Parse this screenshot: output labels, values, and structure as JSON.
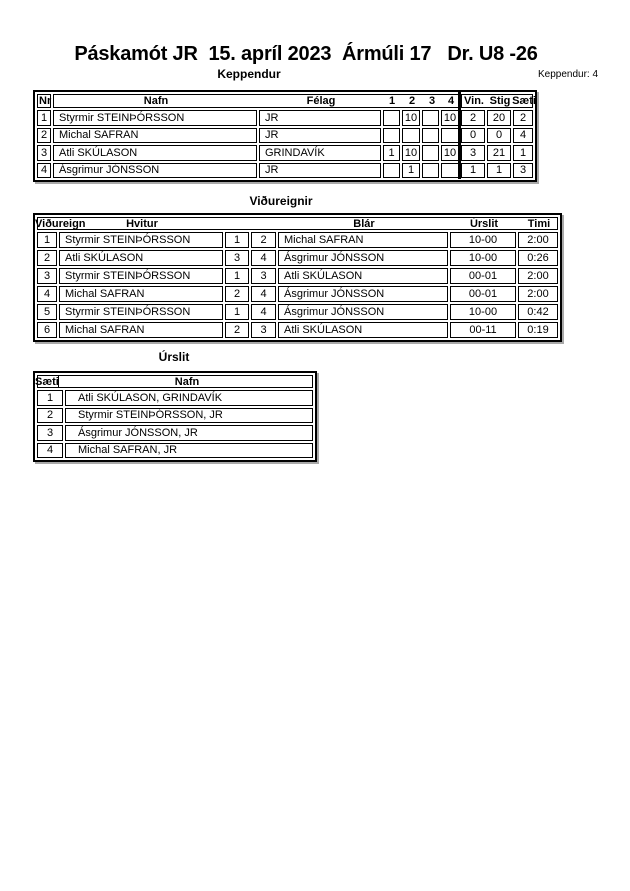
{
  "title": "Páskamót JR  15. apríl 2023  Ármúli 17   Dr. U8 -26",
  "participants_count": "Keppendur: 4",
  "colors": {
    "border": "#000000",
    "shadow": "#a9a9a9",
    "background": "#ffffff",
    "text": "#000000"
  },
  "tables": {
    "keppendur": {
      "heading": "Keppendur",
      "headers": {
        "nr": "Nr",
        "nafn": "Nafn",
        "felag": "Félag",
        "rounds": [
          "1",
          "2",
          "3",
          "4"
        ],
        "vin": "Vin.",
        "stig": "Stig",
        "saeti": "Sæti"
      },
      "rows": [
        {
          "nr": "1",
          "nafn": "Styrmir STEINÞÓRSSON",
          "felag": "JR",
          "rounds": [
            "",
            "10",
            "",
            "10"
          ],
          "vin": "2",
          "stig": "20",
          "saeti": "2"
        },
        {
          "nr": "2",
          "nafn": "Michal SAFRAN",
          "felag": "JR",
          "rounds": [
            "",
            "",
            "",
            ""
          ],
          "vin": "0",
          "stig": "0",
          "saeti": "4"
        },
        {
          "nr": "3",
          "nafn": "Atli SKÚLASON",
          "felag": "GRINDAVÍK",
          "rounds": [
            "1",
            "10",
            "",
            "10"
          ],
          "vin": "3",
          "stig": "21",
          "saeti": "1"
        },
        {
          "nr": "4",
          "nafn": "Ásgrimur JÓNSSON",
          "felag": "JR",
          "rounds": [
            "",
            "1",
            "",
            ""
          ],
          "vin": "1",
          "stig": "1",
          "saeti": "3"
        }
      ]
    },
    "vidureignir": {
      "heading": "Viðureignir",
      "headers": {
        "vidureign": "Viðureign",
        "hvitur": "Hvitur",
        "blar": "Blár",
        "urslit": "Úrslit",
        "timi": "Timi"
      },
      "rows": [
        {
          "nr": "1",
          "hvitur": "Styrmir STEINÞÓRSSON",
          "hvitur_nr": "1",
          "blar_nr": "2",
          "blar": "Michal SAFRAN",
          "urslit": "10-00",
          "timi": "2:00"
        },
        {
          "nr": "2",
          "hvitur": "Atli SKÚLASON",
          "hvitur_nr": "3",
          "blar_nr": "4",
          "blar": "Ásgrimur JÓNSSON",
          "urslit": "10-00",
          "timi": "0:26"
        },
        {
          "nr": "3",
          "hvitur": "Styrmir STEINÞÓRSSON",
          "hvitur_nr": "1",
          "blar_nr": "3",
          "blar": "Atli SKÚLASON",
          "urslit": "00-01",
          "timi": "2:00"
        },
        {
          "nr": "4",
          "hvitur": "Michal SAFRAN",
          "hvitur_nr": "2",
          "blar_nr": "4",
          "blar": "Ásgrimur JÓNSSON",
          "urslit": "00-01",
          "timi": "2:00"
        },
        {
          "nr": "5",
          "hvitur": "Styrmir STEINÞÓRSSON",
          "hvitur_nr": "1",
          "blar_nr": "4",
          "blar": "Ásgrimur JÓNSSON",
          "urslit": "10-00",
          "timi": "0:42"
        },
        {
          "nr": "6",
          "hvitur": "Michal SAFRAN",
          "hvitur_nr": "2",
          "blar_nr": "3",
          "blar": "Atli SKÚLASON",
          "urslit": "00-11",
          "timi": "0:19"
        }
      ]
    },
    "urslit": {
      "heading": "Úrslit",
      "headers": {
        "saeti": "Sæti",
        "nafn": "Nafn"
      },
      "rows": [
        {
          "saeti": "1",
          "nafn": "Atli SKÚLASON, GRINDAVÍK"
        },
        {
          "saeti": "2",
          "nafn": "Styrmir STEINÞÓRSSON, JR"
        },
        {
          "saeti": "3",
          "nafn": "Ásgrimur JÓNSSON, JR"
        },
        {
          "saeti": "4",
          "nafn": "Michal SAFRAN, JR"
        }
      ]
    }
  }
}
